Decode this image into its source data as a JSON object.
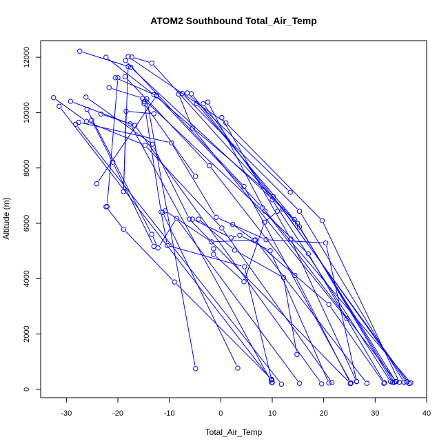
{
  "chart_data": {
    "type": "scatter",
    "title": "ATOM2 Southbound Total_Air_Temp",
    "xlabel": "Total_Air_Temp",
    "ylabel": "Altitude (m)",
    "xlim": [
      -35,
      40
    ],
    "ylim": [
      -300,
      12600
    ],
    "xticks": [
      -30,
      -20,
      -10,
      0,
      10,
      20,
      30,
      40
    ],
    "yticks": [
      0,
      2000,
      4000,
      6000,
      8000,
      10000,
      12000
    ],
    "colors": {
      "series": "#0000ff",
      "axis": "#000000"
    },
    "series": [
      {
        "points": [
          [
            -27.4,
            12220
          ],
          [
            -17.5,
            11640
          ],
          [
            14.3,
            6140
          ],
          [
            34.0,
            290
          ]
        ]
      },
      {
        "points": [
          [
            -22.3,
            12000
          ],
          [
            -13.0,
            10650
          ],
          [
            10.2,
            6960
          ],
          [
            36.6,
            210
          ]
        ]
      },
      {
        "points": [
          [
            -18.5,
            11880
          ],
          [
            4.5,
            7330
          ],
          [
            25.3,
            230
          ]
        ]
      },
      {
        "points": [
          [
            -18.0,
            12020
          ],
          [
            1.0,
            9630
          ],
          [
            19.7,
            6100
          ],
          [
            34.7,
            260
          ]
        ]
      },
      {
        "points": [
          [
            -17.3,
            12010
          ],
          [
            -13.4,
            11790
          ],
          [
            15.3,
            5870
          ],
          [
            33.7,
            260
          ]
        ]
      },
      {
        "points": [
          [
            -20.5,
            11260
          ],
          [
            -12.5,
            10620
          ],
          [
            8.1,
            6560
          ],
          [
            36.9,
            240
          ]
        ]
      },
      {
        "points": [
          [
            -18.6,
            11300
          ],
          [
            -2.2,
            8080
          ],
          [
            14.4,
            4120
          ],
          [
            25.2,
            220
          ]
        ]
      },
      {
        "points": [
          [
            -21.7,
            10900
          ],
          [
            -15.2,
            10520
          ],
          [
            17.0,
            4900
          ],
          [
            31.8,
            240
          ]
        ]
      },
      {
        "points": [
          [
            -7.5,
            10690
          ],
          [
            15.3,
            6440
          ],
          [
            35.6,
            260
          ]
        ]
      },
      {
        "points": [
          [
            -6.5,
            10710
          ],
          [
            13.5,
            7120
          ]
        ]
      },
      {
        "points": [
          [
            -5.7,
            10680
          ],
          [
            12.0,
            6520
          ],
          [
            36.1,
            270
          ]
        ]
      },
      {
        "points": [
          [
            -8.2,
            10670
          ],
          [
            -5.5,
            9440
          ],
          [
            24.5,
            2550
          ]
        ]
      },
      {
        "points": [
          [
            -4.7,
            10330
          ],
          [
            14.9,
            6000
          ],
          [
            33.4,
            250
          ]
        ]
      },
      {
        "points": [
          [
            -3.4,
            10320
          ],
          [
            10.0,
            6850
          ],
          [
            33.0,
            280
          ]
        ]
      },
      {
        "points": [
          [
            -2.5,
            10380
          ],
          [
            8.6,
            6440
          ],
          [
            34.1,
            280
          ]
        ]
      },
      {
        "points": [
          [
            0.2,
            9820
          ],
          [
            13.6,
            5430
          ],
          [
            26.4,
            280
          ]
        ]
      },
      {
        "points": [
          [
            -32.5,
            10540
          ],
          [
            -26.1,
            9680
          ],
          [
            -14.7,
            8820
          ],
          [
            0.2,
            5830
          ],
          [
            21.6,
            250
          ]
        ]
      },
      {
        "points": [
          [
            -31.4,
            10230
          ],
          [
            9.8,
            340
          ]
        ]
      },
      {
        "points": [
          [
            -29.2,
            10410
          ],
          [
            -17.6,
            9590
          ],
          [
            9.9,
            250
          ]
        ]
      },
      {
        "points": [
          [
            -28.2,
            9580
          ],
          [
            11.8,
            190
          ]
        ]
      },
      {
        "points": [
          [
            -27.6,
            9650
          ],
          [
            -9.6,
            8910
          ],
          [
            -0.9,
            6220
          ],
          [
            8.8,
            5410
          ],
          [
            20.4,
            5290
          ],
          [
            26.4,
            290
          ]
        ]
      },
      {
        "points": [
          [
            -26.2,
            10560
          ],
          [
            -13.3,
            8860
          ],
          [
            -6.1,
            6150
          ],
          [
            25.2,
            210
          ]
        ]
      },
      {
        "points": [
          [
            -26.0,
            10120
          ],
          [
            -13.4,
            5600
          ],
          [
            -12.2,
            5110
          ],
          [
            -8.6,
            6180
          ],
          [
            15.3,
            220
          ]
        ]
      },
      {
        "points": [
          [
            -25.1,
            9730
          ],
          [
            -21.0,
            8210
          ],
          [
            -13.0,
            5170
          ]
        ]
      },
      {
        "points": [
          [
            -23.3,
            9950
          ],
          [
            -16.7,
            9540
          ],
          [
            19.6,
            200
          ]
        ]
      },
      {
        "points": [
          [
            -22.3,
            6600
          ],
          [
            -18.9,
            5790
          ],
          [
            -9.0,
            3880
          ],
          [
            9.9,
            360
          ]
        ]
      },
      {
        "points": [
          [
            -18.0,
            11660
          ],
          [
            -18.9,
            7150
          ],
          [
            -18.4,
            10050
          ],
          [
            -13.0,
            9960
          ]
        ]
      },
      {
        "points": [
          [
            -24.1,
            7430
          ],
          [
            -12.5,
            10610
          ]
        ]
      },
      {
        "points": [
          [
            -22.1,
            6610
          ],
          [
            -20.0,
            11260
          ]
        ]
      },
      {
        "points": [
          [
            -14.9,
            10400
          ],
          [
            -11.6,
            6410
          ],
          [
            -10.4,
            5200
          ],
          [
            4.6,
            4430
          ],
          [
            10.0,
            250
          ]
        ]
      },
      {
        "points": [
          [
            -14.9,
            10330
          ],
          [
            -4.9,
            7700
          ]
        ]
      },
      {
        "points": [
          [
            -14.4,
            10500
          ],
          [
            -4.9,
            750
          ]
        ]
      },
      {
        "points": [
          [
            -11.3,
            6390
          ],
          [
            3.3,
            770
          ]
        ]
      },
      {
        "points": [
          [
            -10.8,
            6450
          ],
          [
            -1.8,
            5330
          ],
          [
            6.7,
            5400
          ],
          [
            28.4,
            220
          ]
        ]
      },
      {
        "points": [
          [
            -5.5,
            6150
          ],
          [
            2.0,
            5480
          ],
          [
            3.7,
            5570
          ],
          [
            9.6,
            5010
          ],
          [
            21.0,
            230
          ]
        ]
      },
      {
        "points": [
          [
            -4.3,
            6150
          ],
          [
            2.7,
            5030
          ],
          [
            12.2,
            4040
          ],
          [
            14.8,
            1260
          ]
        ]
      },
      {
        "points": [
          [
            -1.4,
            5080
          ],
          [
            -1.4,
            4880
          ],
          [
            4.5,
            3890
          ],
          [
            8.5,
            6040
          ],
          [
            11.0,
            6440
          ]
        ]
      },
      {
        "points": [
          [
            2.3,
            5960
          ],
          [
            6.5,
            5390
          ],
          [
            21.0,
            3070
          ],
          [
            31.7,
            220
          ]
        ]
      }
    ]
  }
}
